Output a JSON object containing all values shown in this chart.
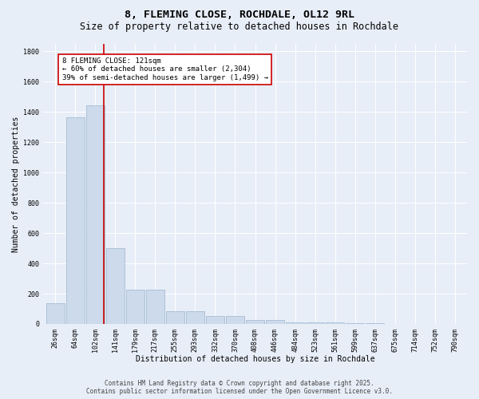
{
  "title_line1": "8, FLEMING CLOSE, ROCHDALE, OL12 9RL",
  "title_line2": "Size of property relative to detached houses in Rochdale",
  "xlabel": "Distribution of detached houses by size in Rochdale",
  "ylabel": "Number of detached properties",
  "bar_labels": [
    "26sqm",
    "64sqm",
    "102sqm",
    "141sqm",
    "179sqm",
    "217sqm",
    "255sqm",
    "293sqm",
    "332sqm",
    "370sqm",
    "408sqm",
    "446sqm",
    "484sqm",
    "523sqm",
    "561sqm",
    "599sqm",
    "637sqm",
    "675sqm",
    "714sqm",
    "752sqm",
    "790sqm"
  ],
  "bar_values": [
    135,
    1365,
    1445,
    500,
    228,
    228,
    85,
    85,
    50,
    50,
    27,
    27,
    10,
    10,
    10,
    5,
    5,
    0,
    0,
    0,
    0
  ],
  "bar_color": "#ccdaeb",
  "bar_edgecolor": "#9ab4cc",
  "vline_x": 2.45,
  "vline_color": "#cc0000",
  "annotation_text": "8 FLEMING CLOSE: 121sqm\n← 60% of detached houses are smaller (2,304)\n39% of semi-detached houses are larger (1,499) →",
  "annotation_box_color": "#ffffff",
  "annotation_box_edgecolor": "#cc0000",
  "ylim": [
    0,
    1850
  ],
  "yticks": [
    0,
    200,
    400,
    600,
    800,
    1000,
    1200,
    1400,
    1600,
    1800
  ],
  "background_color": "#e8eef8",
  "plot_background": "#e8eef8",
  "footer_line1": "Contains HM Land Registry data © Crown copyright and database right 2025.",
  "footer_line2": "Contains public sector information licensed under the Open Government Licence v3.0.",
  "title_fontsize": 9.5,
  "subtitle_fontsize": 8.5,
  "axis_label_fontsize": 7,
  "tick_fontsize": 6,
  "annotation_fontsize": 6.5,
  "footer_fontsize": 5.5
}
